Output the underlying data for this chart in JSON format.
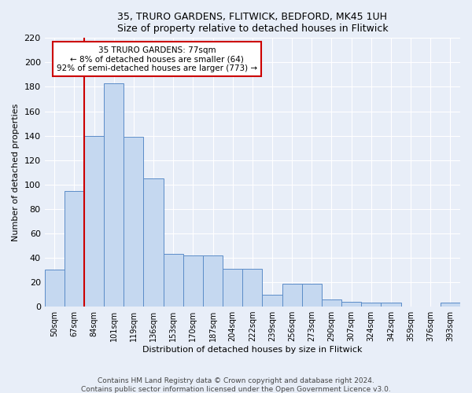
{
  "title1": "35, TRURO GARDENS, FLITWICK, BEDFORD, MK45 1UH",
  "title2": "Size of property relative to detached houses in Flitwick",
  "xlabel": "Distribution of detached houses by size in Flitwick",
  "ylabel": "Number of detached properties",
  "categories": [
    "50sqm",
    "67sqm",
    "84sqm",
    "101sqm",
    "119sqm",
    "136sqm",
    "153sqm",
    "170sqm",
    "187sqm",
    "204sqm",
    "222sqm",
    "239sqm",
    "256sqm",
    "273sqm",
    "290sqm",
    "307sqm",
    "324sqm",
    "342sqm",
    "359sqm",
    "376sqm",
    "393sqm"
  ],
  "values": [
    30,
    95,
    140,
    183,
    139,
    105,
    43,
    42,
    42,
    31,
    31,
    10,
    19,
    19,
    6,
    4,
    3,
    3,
    0,
    0,
    3
  ],
  "bar_color": "#c5d8f0",
  "bar_edge_color": "#5b8cc8",
  "annotation_text_line1": "35 TRURO GARDENS: 77sqm",
  "annotation_text_line2": "← 8% of detached houses are smaller (64)",
  "annotation_text_line3": "92% of semi-detached houses are larger (773) →",
  "annotation_box_color": "#ffffff",
  "annotation_box_edge": "#cc0000",
  "vline_color": "#cc0000",
  "vline_x_index": 1,
  "ylim": [
    0,
    220
  ],
  "yticks": [
    0,
    20,
    40,
    60,
    80,
    100,
    120,
    140,
    160,
    180,
    200,
    220
  ],
  "footer1": "Contains HM Land Registry data © Crown copyright and database right 2024.",
  "footer2": "Contains public sector information licensed under the Open Government Licence v3.0.",
  "bg_color": "#e8eef8",
  "plot_bg_color": "#e8eef8",
  "grid_color": "#ffffff",
  "title_fontsize": 9,
  "xlabel_fontsize": 8,
  "ylabel_fontsize": 8,
  "tick_fontsize": 7,
  "footer_fontsize": 6.5
}
